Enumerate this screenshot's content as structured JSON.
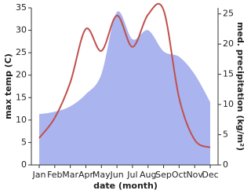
{
  "chart_data": {
    "type": "line",
    "x_label": "date (month)",
    "y_label": "max temp (C)",
    "y2_label": "med. precipitation (kg/m²)",
    "categories": [
      "Jan",
      "Feb",
      "Mar",
      "Apr",
      "May",
      "Jun",
      "Jul",
      "Aug",
      "Sep",
      "Oct",
      "Nov",
      "Dec"
    ],
    "ylim": [
      0,
      35
    ],
    "yticks": [
      0,
      5,
      10,
      15,
      20,
      25,
      30,
      35
    ],
    "y2lim": [
      0,
      26
    ],
    "y2ticks": [
      0,
      5,
      10,
      15,
      20,
      25
    ],
    "series": [
      {
        "name": "max temp",
        "color": "#c0504d",
        "type": "line",
        "values": [
          6.0,
          10.5,
          18.4,
          30.3,
          25.4,
          33.3,
          26.3,
          33.5,
          34.5,
          14.9,
          5.6,
          3.9
        ]
      },
      {
        "name": "med. precipitation",
        "color": "#aab4ee",
        "type": "area",
        "axis": "y2",
        "values": [
          8.4,
          8.8,
          9.7,
          11.7,
          15.0,
          25.3,
          20.8,
          22.3,
          18.8,
          17.9,
          15.0,
          10.4
        ]
      }
    ]
  }
}
